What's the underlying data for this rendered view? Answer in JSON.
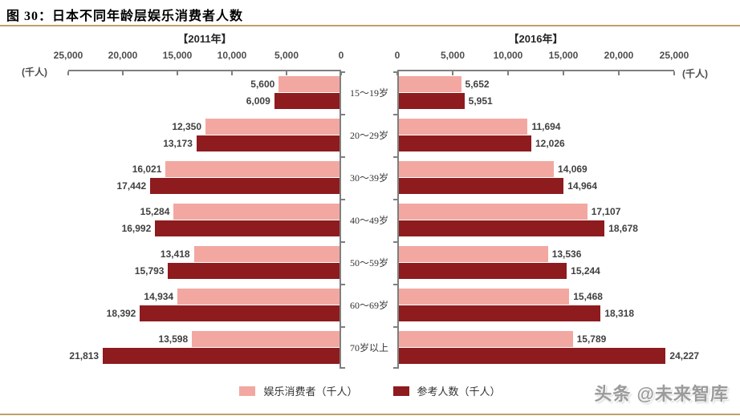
{
  "title": "图 30：日本不同年龄层娱乐消费者人数",
  "watermark": "头条 @未来智库",
  "colors": {
    "consumer_pink": "#F2A8A1",
    "reference_dark_red": "#8E1B1E",
    "accent_gold_rule": "#BDA06A",
    "axis_gray": "#7F7F7F",
    "text_gray": "#404040"
  },
  "chart_data": {
    "type": "bar",
    "orientation": "horizontal-mirrored-pyramid",
    "xlim": [
      0,
      25000
    ],
    "grid": false,
    "unit_label_left": "(千人)",
    "unit_label_right": "(千人)",
    "axis_ticks_left": [
      "25,000",
      "20,000",
      "15,000",
      "10,000",
      "5,000",
      "0"
    ],
    "axis_ticks_right": [
      "0",
      "5,000",
      "10,000",
      "15,000",
      "20,000",
      "25,000"
    ],
    "categories": [
      "15～19岁",
      "20～29岁",
      "30～39岁",
      "40～49岁",
      "50～59岁",
      "60～69岁",
      "70岁以上"
    ],
    "panels": [
      {
        "title": "【2011年】",
        "series": [
          {
            "name": "娱乐消费者",
            "values": [
              5600,
              12350,
              16021,
              15284,
              13418,
              14934,
              13598
            ]
          },
          {
            "name": "参考人数",
            "values": [
              6009,
              13173,
              17442,
              16992,
              15793,
              18392,
              21813
            ]
          }
        ]
      },
      {
        "title": "【2016年】",
        "series": [
          {
            "name": "娱乐消费者",
            "values": [
              5652,
              11694,
              14069,
              17107,
              13536,
              15468,
              15789
            ]
          },
          {
            "name": "参考人数",
            "values": [
              5951,
              12026,
              14964,
              18678,
              15244,
              18318,
              24227
            ]
          }
        ]
      }
    ],
    "legend": [
      "娱乐消费者（千人）",
      "参考人数（千人）"
    ],
    "legend_position": "bottom-center"
  }
}
